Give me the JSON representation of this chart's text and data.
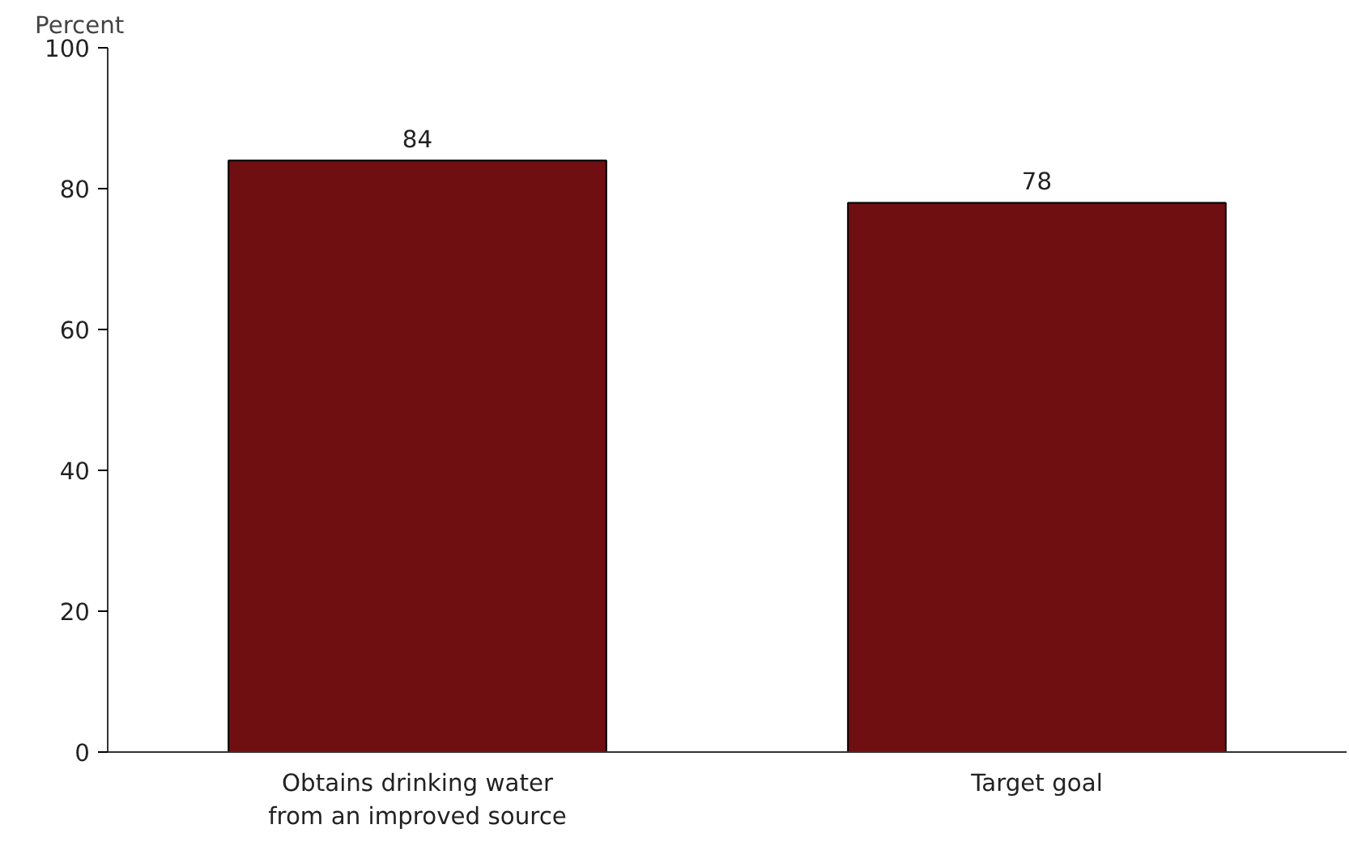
{
  "chart_data": {
    "type": "bar",
    "ylabel": "Percent",
    "categories": [
      "Obtains drinking water\nfrom an improved source",
      "Target goal"
    ],
    "values": [
      84,
      78
    ],
    "color": "#6f0f12",
    "ylim": [
      0,
      100
    ],
    "yticks": [
      0,
      20,
      40,
      60,
      80,
      100
    ],
    "data_labels": true,
    "grid": false
  }
}
